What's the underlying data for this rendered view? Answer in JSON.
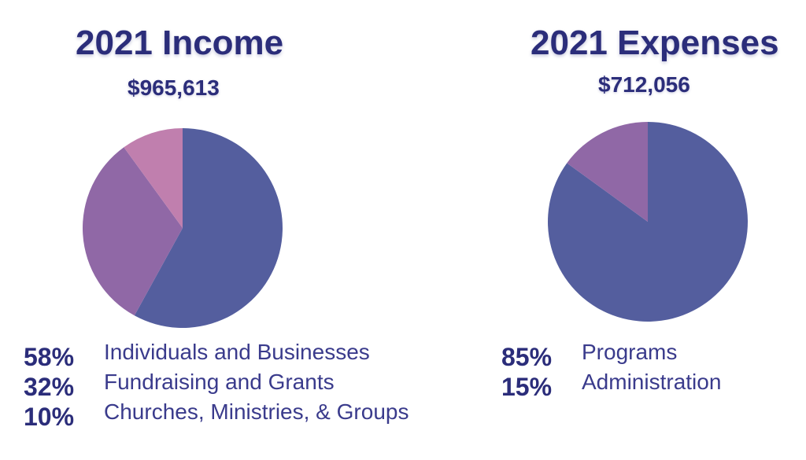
{
  "chart_data": [
    {
      "type": "pie",
      "title": "2021 Income",
      "subtitle": "$965,613",
      "categories": [
        "Individuals and Businesses",
        "Fundraising and Grants",
        "Churches, Ministries, & Groups"
      ],
      "values": [
        58,
        32,
        10
      ],
      "value_labels": [
        "58%",
        "32%",
        "10%"
      ],
      "colors": [
        "#545e9e",
        "#9068a6",
        "#c07fae"
      ],
      "legend_position": "bottom"
    },
    {
      "type": "pie",
      "title": "2021 Expenses",
      "subtitle": "$712,056",
      "categories": [
        "Programs",
        "Administration"
      ],
      "values": [
        85,
        15
      ],
      "value_labels": [
        "85%",
        "15%"
      ],
      "colors": [
        "#545e9e",
        "#9068a6"
      ],
      "legend_position": "bottom"
    }
  ]
}
